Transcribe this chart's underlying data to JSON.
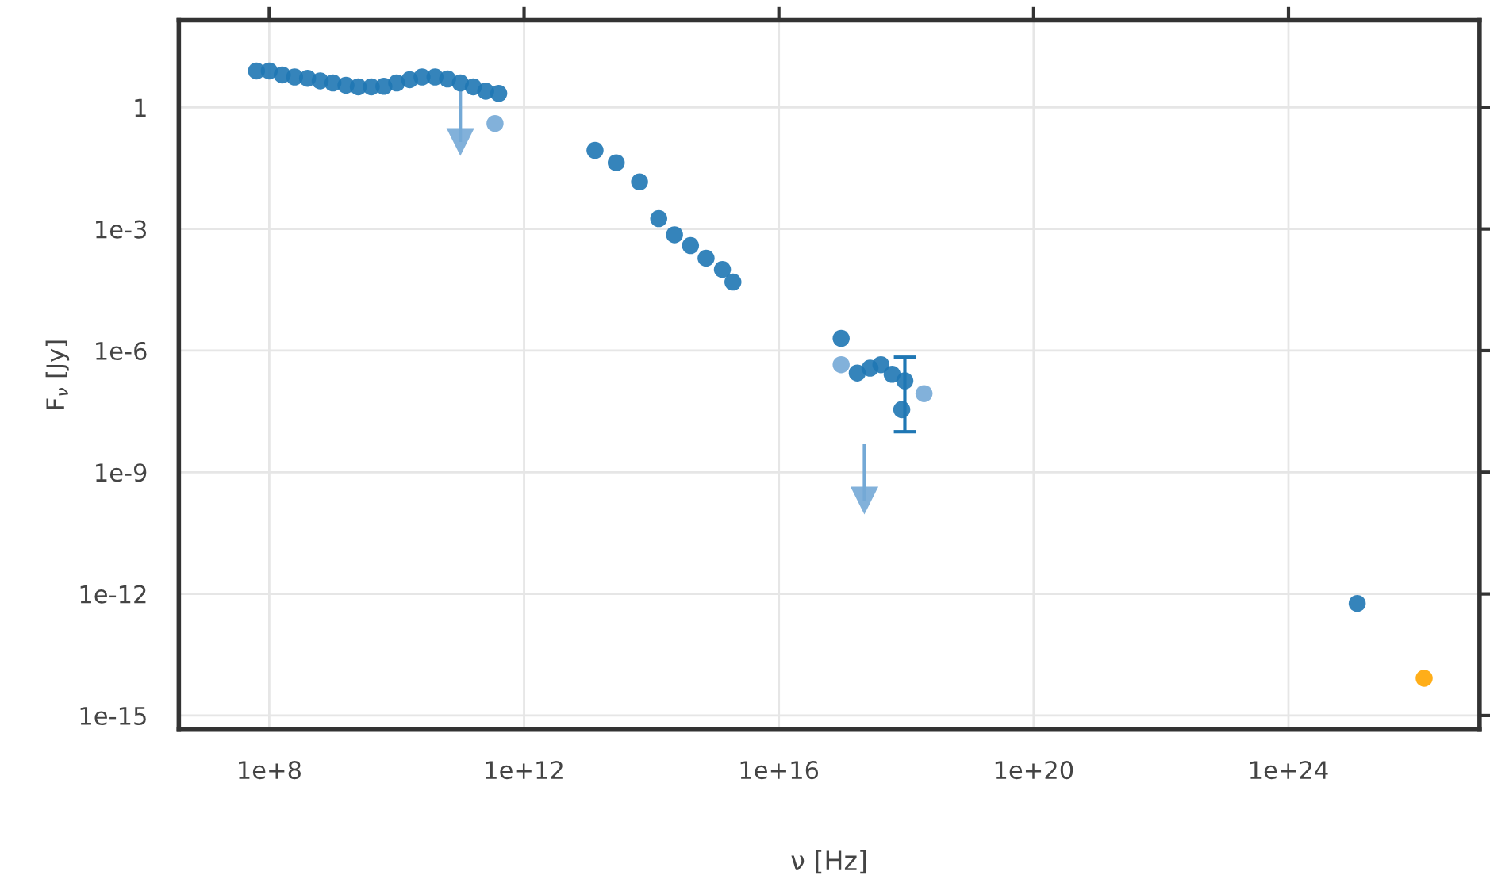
{
  "chart_data": {
    "type": "scatter",
    "xlabel": "ν [Hz]",
    "ylabel": "F$_{ν}$ [Jy]",
    "log": "xy",
    "grid": true,
    "marker": "circle",
    "xlim": [
      3800000.0,
      1e+27
    ],
    "ylim": [
      4.5e-16,
      141
    ],
    "xticks": [
      {
        "value": 100000000.0,
        "label": "1e+8"
      },
      {
        "value": 1000000000000.0,
        "label": "1e+12"
      },
      {
        "value": 1e+16,
        "label": "1e+16"
      },
      {
        "value": 1e+20,
        "label": "1e+20"
      },
      {
        "value": 1e+24,
        "label": "1e+24"
      }
    ],
    "yticks": [
      {
        "value": 1,
        "label": "1"
      },
      {
        "value": 0.001,
        "label": "1e-3"
      },
      {
        "value": 1e-06,
        "label": "1e-6"
      },
      {
        "value": 1e-09,
        "label": "1e-9"
      },
      {
        "value": 1e-12,
        "label": "1e-12"
      },
      {
        "value": 1e-15,
        "label": "1e-15"
      }
    ],
    "series": [
      {
        "color": "#1f77b4",
        "x": [
          63000000.0,
          100000000.0,
          160000000.0,
          250000000.0,
          400000000.0,
          630000000.0,
          1000000000.0,
          1600000000.0,
          2500000000.0,
          4000000000.0,
          6300000000.0,
          10000000000.0,
          16000000000.0,
          25000000000.0,
          40000000000.0,
          63000000000.0,
          100000000000.0,
          160000000000.0,
          250000000000.0,
          400000000000.0,
          13000000000000.0,
          28000000000000.0,
          65000000000000.0,
          130000000000000.0,
          230000000000000.0,
          410000000000000.0,
          720000000000000.0,
          1300000000000000.0,
          1900000000000000.0,
          9.5e+16,
          1.7e+17,
          2.7e+17,
          4e+17,
          6e+17,
          9.5e+17,
          8.5e+17,
          1.2e+25
        ],
        "values": [
          7.9,
          7.9,
          6.3,
          5.6,
          5.2,
          4.5,
          4,
          3.5,
          3.2,
          3.2,
          3.3,
          4,
          4.8,
          5.6,
          5.6,
          5,
          4,
          3.2,
          2.5,
          2.2,
          0.087,
          0.043,
          0.0145,
          0.0018,
          0.00072,
          0.00039,
          0.00019,
          0.0001,
          4.9e-05,
          2e-06,
          2.8e-07,
          3.7e-07,
          4.5e-07,
          2.6e-07,
          1.8e-07,
          3.5e-08,
          5.8e-13
        ],
        "errors": [
          null,
          null,
          null,
          null,
          null,
          null,
          null,
          null,
          null,
          null,
          null,
          null,
          null,
          null,
          null,
          null,
          null,
          null,
          null,
          null,
          null,
          null,
          null,
          null,
          null,
          null,
          null,
          null,
          null,
          null,
          null,
          null,
          null,
          null,
          [
            1e-08,
            6.9e-07
          ],
          null,
          null
        ]
      },
      {
        "color": "#74a9d6",
        "x": [
          350000000000.0,
          9.5e+16,
          1.9e+18
        ],
        "values": [
          0.4,
          4.5e-07,
          8.7e-08
        ]
      },
      {
        "color": "#74a9d6",
        "marker": "triangle",
        "x": [
          100000000000.0,
          2.2e+17
        ],
        "values": [
          0.14,
          2e-10
        ],
        "errors": [
          [
            0.14,
            2.5
          ],
          [
            2e-10,
            4.9e-09
          ]
        ]
      },
      {
        "color": "#ffa500",
        "x": [
          1.35e+26
        ],
        "values": [
          8.3e-15
        ]
      }
    ]
  }
}
